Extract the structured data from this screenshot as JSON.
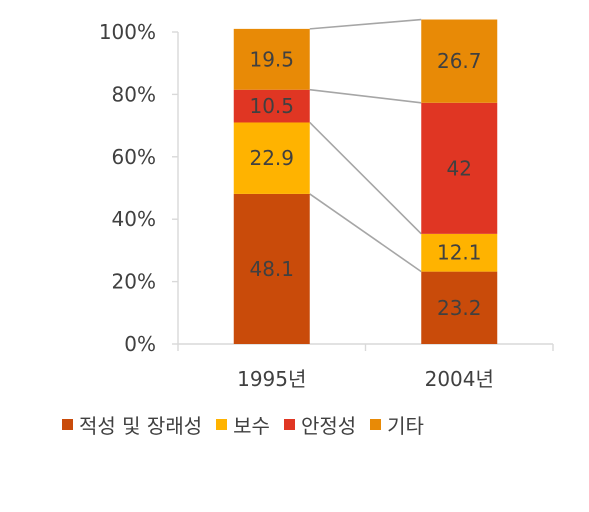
{
  "chart_data": {
    "type": "bar",
    "stacked": true,
    "percent_axis": true,
    "categories": [
      "1995년",
      "2004년"
    ],
    "series": [
      {
        "name": "적성 및 장래성",
        "values": [
          48.1,
          23.2
        ],
        "color": "#C94B0A"
      },
      {
        "name": "보수",
        "values": [
          22.9,
          12.1
        ],
        "color": "#FFB300"
      },
      {
        "name": "안정성",
        "values": [
          10.5,
          42
        ],
        "color": "#E03623"
      },
      {
        "name": "기타",
        "values": [
          19.5,
          26.7
        ],
        "color": "#E88A06"
      }
    ],
    "y_ticks": [
      "0%",
      "20%",
      "40%",
      "60%",
      "80%",
      "100%"
    ],
    "ylim": [
      0,
      100
    ],
    "grid": false,
    "legend_position": "bottom",
    "connector_lines": true,
    "title": "",
    "xlabel": "",
    "ylabel": ""
  }
}
